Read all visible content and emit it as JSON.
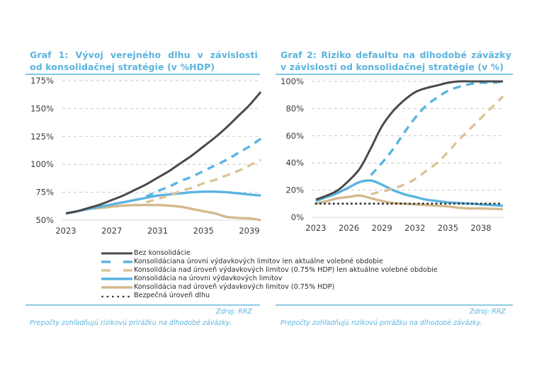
{
  "panels": [
    {
      "title_line1_words": [
        "Graf",
        "1:",
        "Vývoj",
        "verejného",
        "dlhu",
        "v",
        "závislosti"
      ],
      "title_line2": "od konsolidačnej stratégie (v %HDP)",
      "source": "Zdroj: RRZ",
      "note": "Prepočty zohľadňujú rizikovú prirážku na dlhodobé záväzky."
    },
    {
      "title_line1_words": [
        "Graf",
        "2:",
        "Riziko",
        "defaultu",
        "na",
        "dlhodobé",
        "záväzky"
      ],
      "title_line2": "v závislosti od konsolidačnej stratégie (v %)",
      "source": "Zdroj: RRZ",
      "note": "Prepočty zohľadňujú rizikovú prirážku na dlhodobé záväzky."
    }
  ],
  "legend": [
    {
      "label": "Bez konsolidácie",
      "style": "solid",
      "color": "#4a4a4a"
    },
    {
      "label": "Konsolidáciana úrovni výdavkových limitov len aktuálne volebné obdobie",
      "style": "dashed",
      "color": "#5ab4e0"
    },
    {
      "label": "Konsolidácia nad úroveň výdavkových limitov (0.75% HDP) len aktuálne volebné obdobie",
      "style": "dashed",
      "color": "#dcc39a"
    },
    {
      "label": "Konsolidácia na úrovni výdavkových limitov",
      "style": "solid",
      "color": "#5ab4e0"
    },
    {
      "label": "Konsolidácia nad úroveň výdavkových limitov (0.75% HDP)",
      "style": "solid",
      "color": "#d4b98e"
    },
    {
      "label": "Bezpečná úroveň dlhu",
      "style": "dotted",
      "color": "#333333"
    }
  ],
  "chart_data": [
    {
      "type": "line",
      "title": "Graf 1: Vývoj verejného dlhu v závislosti od konsolidačnej stratégie (v %HDP)",
      "xlabel": "",
      "ylabel": "",
      "ylim": [
        50,
        175
      ],
      "xlim": [
        2022.5,
        2040.5
      ],
      "grid": true,
      "yticks": [
        50,
        75,
        100,
        125,
        150,
        175
      ],
      "ytick_labels": [
        "50%",
        "75%",
        "100%",
        "125%",
        "150%",
        "175%"
      ],
      "xticks": [
        2023,
        2027,
        2031,
        2035,
        2039
      ],
      "xtick_labels": [
        "2023",
        "2027",
        "2031",
        "2035",
        "2039"
      ],
      "x": [
        2023,
        2024,
        2025,
        2026,
        2027,
        2028,
        2029,
        2030,
        2031,
        2032,
        2033,
        2034,
        2035,
        2036,
        2037,
        2038,
        2039,
        2040
      ],
      "series": [
        {
          "name": "Bez konsolidácie",
          "values": [
            56,
            58,
            61,
            64,
            68,
            72,
            77,
            82,
            88,
            94,
            101,
            108,
            116,
            124,
            133,
            143,
            153,
            165
          ]
        },
        {
          "name": "Konsolidáciana úrovni výdavkových limitov len aktuálne volebné obdobie",
          "values": [
            null,
            null,
            null,
            null,
            null,
            null,
            null,
            71,
            76,
            80,
            85,
            89,
            94,
            99,
            104,
            110,
            116,
            123
          ]
        },
        {
          "name": "Konsolidácia nad úroveň výdavkových limitov (0.75% HDP) len aktuálne volebné obdobie",
          "values": [
            null,
            null,
            null,
            null,
            null,
            null,
            null,
            66,
            69,
            72,
            76,
            79,
            83,
            86,
            90,
            94,
            99,
            104
          ]
        },
        {
          "name": "Konsolidácia na úrovni výdavkových limitov",
          "values": [
            56,
            58,
            60,
            62,
            64,
            66,
            68,
            70,
            72,
            73,
            74,
            75,
            75.5,
            75.5,
            75,
            74,
            73,
            72
          ]
        },
        {
          "name": "Konsolidácia nad úroveň výdavkových limitov (0.75% HDP)",
          "values": [
            56,
            58,
            60,
            61,
            62,
            63,
            63.5,
            63.5,
            63.5,
            63,
            62,
            60,
            58,
            56,
            53,
            52,
            51.5,
            50
          ]
        }
      ]
    },
    {
      "type": "line",
      "title": "Graf 2: Riziko defaultu na dlhodobé záväzky v závislosti od konsolidačnej stratégie (v %)",
      "xlabel": "",
      "ylabel": "",
      "ylim": [
        0,
        100
      ],
      "xlim": [
        2022.5,
        2041
      ],
      "grid": true,
      "yticks": [
        0,
        20,
        40,
        60,
        80,
        100
      ],
      "ytick_labels": [
        "0%",
        "20%",
        "40%",
        "60%",
        "80%",
        "100%"
      ],
      "xticks": [
        2023,
        2026,
        2029,
        2032,
        2035,
        2038
      ],
      "xtick_labels": [
        "2023",
        "2026",
        "2029",
        "2032",
        "2035",
        "2038"
      ],
      "x": [
        2023,
        2024,
        2025,
        2026,
        2027,
        2028,
        2029,
        2030,
        2031,
        2032,
        2033,
        2034,
        2035,
        2036,
        2037,
        2038,
        2039,
        2040
      ],
      "series": [
        {
          "name": "Bez konsolidácie",
          "values": [
            13,
            16,
            20,
            27,
            36,
            51,
            67,
            78,
            86,
            92,
            95,
            97,
            99,
            100,
            100,
            100,
            100,
            100
          ]
        },
        {
          "name": "Konsolidáciana úrovni výdavkových limitov len aktuálne volebné obdobie",
          "values": [
            null,
            null,
            null,
            null,
            null,
            31,
            40,
            50,
            62,
            73,
            82,
            88,
            93,
            96,
            98,
            99,
            99,
            100
          ]
        },
        {
          "name": "Konsolidácia nad úroveň výdavkových limitov (0.75% HDP) len aktuálne volebné obdobie",
          "values": [
            null,
            null,
            null,
            null,
            null,
            17,
            19,
            21,
            24,
            28,
            34,
            40,
            48,
            57,
            65,
            73,
            81,
            89
          ]
        },
        {
          "name": "Konsolidácia na úrovni výdavkových limitov",
          "values": [
            12,
            15,
            18,
            22,
            26,
            27,
            24,
            20,
            17,
            15,
            13,
            12,
            11,
            10.5,
            10,
            9.5,
            9,
            8.5
          ]
        },
        {
          "name": "Konsolidácia nad úroveň výdavkových limitov (0.75% HDP)",
          "values": [
            10,
            12,
            14,
            15,
            16,
            14,
            12,
            10.5,
            10,
            9.5,
            9,
            8.5,
            8,
            7,
            6.5,
            6.5,
            6.2,
            6
          ]
        },
        {
          "name": "Bezpečná úroveň dlhu",
          "values": [
            10,
            10,
            10,
            10,
            10,
            10,
            10,
            10,
            10,
            10,
            10,
            10,
            10,
            10,
            10,
            10,
            10,
            10
          ]
        }
      ]
    }
  ]
}
